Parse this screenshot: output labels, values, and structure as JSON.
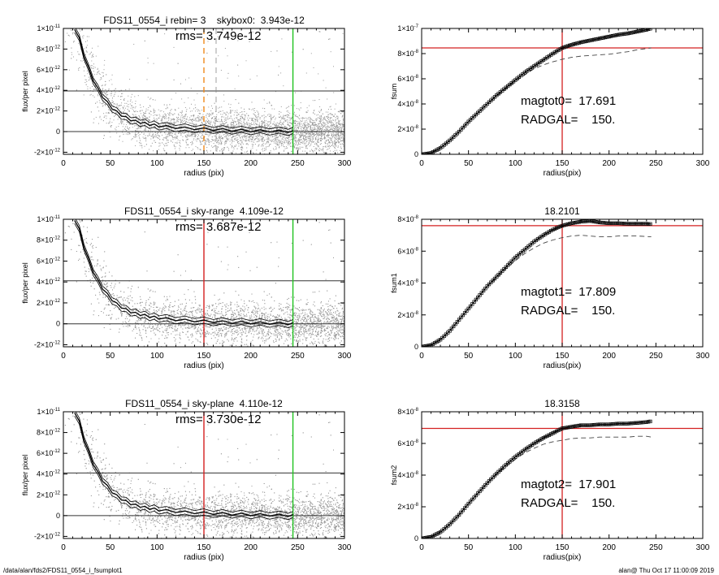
{
  "footer": {
    "path": "/data/alan/fds2/FDS11_0554_i_fsumplot1",
    "stamp": "alan@  Thu Oct 17 11:00:09 2019"
  },
  "colors": {
    "scatter": "#9a9a9a",
    "profile": "#000000",
    "red_marker": "#d42020",
    "green_marker": "#1fc21f",
    "orange_marker": "#f08a1c",
    "dashed_curve": "#444444"
  },
  "chart_data": [
    {
      "type": "scatter",
      "panel": "left-row1",
      "title": "FDS11_0554_i rebin= 3    skybox0:  3.943e-12",
      "annotation": "rms= 3.749e-12",
      "xlabel": "radius (pix)",
      "ylabel": "flux/per pixel",
      "xlim": [
        0,
        300
      ],
      "ylim": [
        -2.2e-12,
        1e-11
      ],
      "xticks": [
        "0",
        "50",
        "100",
        "150",
        "200",
        "250",
        "300"
      ],
      "yticks": [
        {
          "value": 1e-11,
          "base": "1×10",
          "exp": "-11"
        },
        {
          "value": 8e-12,
          "base": "8×10",
          "exp": "-12"
        },
        {
          "value": 6e-12,
          "base": "6×10",
          "exp": "-12"
        },
        {
          "value": 4e-12,
          "base": "4×10",
          "exp": "-12"
        },
        {
          "value": 2e-12,
          "base": "2×10",
          "exp": "-12"
        },
        {
          "value": 0,
          "base": "0",
          "exp": ""
        },
        {
          "value": -2e-12,
          "base": "-2×10",
          "exp": "-12"
        }
      ],
      "hlines": [
        3.94e-12,
        0
      ],
      "vlines": [
        {
          "x": 150,
          "color": "orange",
          "style": "dashed"
        },
        {
          "x": 163,
          "color": "grey",
          "style": "dashed"
        },
        {
          "x": 245,
          "color": "green",
          "style": "solid"
        }
      ],
      "profile": {
        "x": [
          12,
          17,
          22,
          27,
          32,
          37,
          42,
          47,
          52,
          57,
          62,
          67,
          72,
          77,
          82,
          87,
          92,
          97,
          102,
          110,
          120,
          130,
          140,
          150,
          160,
          170,
          180,
          190,
          200,
          210,
          220,
          230,
          240,
          245
        ],
        "y": [
          1e-11,
          9e-12,
          7.4e-12,
          6.1e-12,
          5e-12,
          4.1e-12,
          3.4e-12,
          2.8e-12,
          2.3e-12,
          1.9e-12,
          1.6e-12,
          1.35e-12,
          1.15e-12,
          1e-12,
          9e-13,
          8e-13,
          7e-13,
          6.3e-13,
          5.6e-13,
          4.8e-13,
          4e-13,
          3.4e-13,
          2.9e-13,
          2.5e-13,
          2.1e-13,
          1.8e-13,
          1.5e-13,
          1.2e-13,
          1e-13,
          8e-14,
          6e-14,
          4e-14,
          2e-14,
          0
        ],
        "band": 3e-13
      }
    },
    {
      "type": "line",
      "panel": "right-row1",
      "title": "",
      "annotations": [
        "magtot0=  17.691",
        "RADGAL=    150."
      ],
      "xlabel": "radius(pix)",
      "ylabel": "fsum",
      "xlim": [
        0,
        300
      ],
      "ylim": [
        0,
        1e-07
      ],
      "xticks": [
        "0",
        "50",
        "100",
        "150",
        "200",
        "250",
        "300"
      ],
      "yticks": [
        {
          "value": 0,
          "base": "0",
          "exp": ""
        },
        {
          "value": 2e-08,
          "base": "2×10",
          "exp": "-8"
        },
        {
          "value": 4e-08,
          "base": "4×10",
          "exp": "-8"
        },
        {
          "value": 6e-08,
          "base": "6×10",
          "exp": "-8"
        },
        {
          "value": 8e-08,
          "base": "8×10",
          "exp": "-8"
        },
        {
          "value": 1e-07,
          "base": "1×10",
          "exp": "-7"
        }
      ],
      "hline": 8.45e-08,
      "vline": 150,
      "solid": {
        "x": [
          0,
          10,
          20,
          30,
          40,
          50,
          60,
          70,
          80,
          90,
          100,
          110,
          120,
          130,
          140,
          150,
          160,
          170,
          180,
          190,
          200,
          210,
          220,
          230,
          240,
          245
        ],
        "y": [
          0,
          1e-09,
          5e-09,
          1.1e-08,
          1.8e-08,
          2.6e-08,
          3.3e-08,
          4e-08,
          4.7e-08,
          5.3e-08,
          5.9e-08,
          6.5e-08,
          7e-08,
          7.5e-08,
          8e-08,
          8.45e-08,
          8.7e-08,
          8.9e-08,
          9.05e-08,
          9.2e-08,
          9.35e-08,
          9.5e-08,
          9.6e-08,
          9.75e-08,
          9.9e-08,
          1e-07
        ]
      },
      "dashed": {
        "x": [
          0,
          10,
          20,
          30,
          40,
          50,
          60,
          70,
          80,
          90,
          100,
          110,
          120,
          130,
          140,
          150,
          160,
          170,
          180,
          190,
          200,
          210,
          220,
          230,
          240,
          245
        ],
        "y": [
          0,
          1e-09,
          5e-09,
          1.1e-08,
          1.8e-08,
          2.6e-08,
          3.3e-08,
          4e-08,
          4.6e-08,
          5.2e-08,
          5.8e-08,
          6.3e-08,
          6.8e-08,
          7.1e-08,
          7.35e-08,
          7.55e-08,
          7.7e-08,
          7.8e-08,
          7.85e-08,
          7.9e-08,
          7.95e-08,
          8.05e-08,
          8.15e-08,
          8.3e-08,
          8.4e-08,
          8.45e-08
        ]
      }
    },
    {
      "type": "scatter",
      "panel": "left-row2",
      "title": "FDS11_0554_i sky-range  4.109e-12",
      "annotation": "rms= 3.687e-12",
      "xlabel": "radius (pix)",
      "ylabel": "flux/per pixel",
      "xlim": [
        0,
        300
      ],
      "ylim": [
        -2.2e-12,
        1e-11
      ],
      "xticks": [
        "0",
        "50",
        "100",
        "150",
        "200",
        "250",
        "300"
      ],
      "yticks": [
        {
          "value": 1e-11,
          "base": "1×10",
          "exp": "-11"
        },
        {
          "value": 8e-12,
          "base": "8×10",
          "exp": "-12"
        },
        {
          "value": 6e-12,
          "base": "6×10",
          "exp": "-12"
        },
        {
          "value": 4e-12,
          "base": "4×10",
          "exp": "-12"
        },
        {
          "value": 2e-12,
          "base": "2×10",
          "exp": "-12"
        },
        {
          "value": 0,
          "base": "0",
          "exp": ""
        },
        {
          "value": -2e-12,
          "base": "-2×10",
          "exp": "-12"
        }
      ],
      "hlines": [
        4.11e-12,
        0
      ],
      "vlines": [
        {
          "x": 150,
          "color": "red",
          "style": "solid"
        },
        {
          "x": 245,
          "color": "green",
          "style": "solid"
        }
      ],
      "profile": {
        "x": [
          12,
          17,
          22,
          27,
          32,
          37,
          42,
          47,
          52,
          57,
          62,
          67,
          72,
          77,
          82,
          87,
          92,
          97,
          102,
          110,
          120,
          130,
          140,
          150,
          160,
          170,
          180,
          190,
          200,
          210,
          220,
          230,
          240,
          245
        ],
        "y": [
          1e-11,
          9e-12,
          7.4e-12,
          6.1e-12,
          5e-12,
          4.1e-12,
          3.4e-12,
          2.8e-12,
          2.3e-12,
          1.9e-12,
          1.6e-12,
          1.35e-12,
          1.15e-12,
          1e-12,
          9e-13,
          8e-13,
          7e-13,
          6.3e-13,
          5.6e-13,
          4.8e-13,
          4e-13,
          3.4e-13,
          2.9e-13,
          2.5e-13,
          2.1e-13,
          1.8e-13,
          1.5e-13,
          1.2e-13,
          1e-13,
          8e-14,
          6e-14,
          4e-14,
          2e-14,
          0
        ],
        "band": 3e-13
      }
    },
    {
      "type": "line",
      "panel": "right-row2",
      "title": "18.2101",
      "annotations": [
        "magtot1=  17.809",
        "RADGAL=    150."
      ],
      "xlabel": "radius(pix)",
      "ylabel": "fsum1",
      "xlim": [
        0,
        300
      ],
      "ylim": [
        0,
        8e-08
      ],
      "xticks": [
        "0",
        "50",
        "100",
        "150",
        "200",
        "250",
        "300"
      ],
      "yticks": [
        {
          "value": 0,
          "base": "0",
          "exp": ""
        },
        {
          "value": 2e-08,
          "base": "2×10",
          "exp": "-8"
        },
        {
          "value": 4e-08,
          "base": "4×10",
          "exp": "-8"
        },
        {
          "value": 6e-08,
          "base": "6×10",
          "exp": "-8"
        },
        {
          "value": 8e-08,
          "base": "8×10",
          "exp": "-8"
        }
      ],
      "hline": 7.6e-08,
      "vline": 150,
      "solid": {
        "x": [
          0,
          10,
          20,
          30,
          40,
          50,
          60,
          70,
          80,
          90,
          100,
          110,
          120,
          130,
          140,
          150,
          160,
          170,
          180,
          190,
          200,
          210,
          220,
          230,
          240,
          245
        ],
        "y": [
          0,
          1e-09,
          4.5e-09,
          1e-08,
          1.7e-08,
          2.4e-08,
          3.1e-08,
          3.8e-08,
          4.4e-08,
          5e-08,
          5.6e-08,
          6.1e-08,
          6.6e-08,
          7e-08,
          7.35e-08,
          7.6e-08,
          7.75e-08,
          7.85e-08,
          7.9e-08,
          7.8e-08,
          7.75e-08,
          7.75e-08,
          7.72e-08,
          7.72e-08,
          7.72e-08,
          7.7e-08
        ]
      },
      "dashed": {
        "x": [
          0,
          10,
          20,
          30,
          40,
          50,
          60,
          70,
          80,
          90,
          100,
          110,
          120,
          130,
          140,
          150,
          160,
          170,
          180,
          190,
          200,
          210,
          220,
          230,
          240,
          245
        ],
        "y": [
          0,
          1e-09,
          4.5e-09,
          1e-08,
          1.7e-08,
          2.4e-08,
          3.1e-08,
          3.8e-08,
          4.3e-08,
          4.9e-08,
          5.4e-08,
          5.85e-08,
          6.2e-08,
          6.5e-08,
          6.7e-08,
          6.85e-08,
          6.95e-08,
          7e-08,
          6.95e-08,
          6.9e-08,
          6.9e-08,
          6.95e-08,
          6.95e-08,
          6.95e-08,
          6.92e-08,
          6.9e-08
        ]
      }
    },
    {
      "type": "scatter",
      "panel": "left-row3",
      "title": "FDS11_0554_i sky-plane  4.110e-12",
      "annotation": "rms= 3.730e-12",
      "xlabel": "radius (pix)",
      "ylabel": "flux/per pixel",
      "xlim": [
        0,
        300
      ],
      "ylim": [
        -2.2e-12,
        1e-11
      ],
      "xticks": [
        "0",
        "50",
        "100",
        "150",
        "200",
        "250",
        "300"
      ],
      "yticks": [
        {
          "value": 1e-11,
          "base": "1×10",
          "exp": "-11"
        },
        {
          "value": 8e-12,
          "base": "8×10",
          "exp": "-12"
        },
        {
          "value": 6e-12,
          "base": "6×10",
          "exp": "-12"
        },
        {
          "value": 4e-12,
          "base": "4×10",
          "exp": "-12"
        },
        {
          "value": 2e-12,
          "base": "2×10",
          "exp": "-12"
        },
        {
          "value": 0,
          "base": "0",
          "exp": ""
        },
        {
          "value": -2e-12,
          "base": "-2×10",
          "exp": "-12"
        }
      ],
      "hlines": [
        4.11e-12,
        0
      ],
      "vlines": [
        {
          "x": 150,
          "color": "red",
          "style": "solid"
        },
        {
          "x": 245,
          "color": "green",
          "style": "solid"
        }
      ],
      "profile": {
        "x": [
          12,
          17,
          22,
          27,
          32,
          37,
          42,
          47,
          52,
          57,
          62,
          67,
          72,
          77,
          82,
          87,
          92,
          97,
          102,
          110,
          120,
          130,
          140,
          150,
          160,
          170,
          180,
          190,
          200,
          210,
          220,
          230,
          240,
          245
        ],
        "y": [
          1e-11,
          9e-12,
          7.4e-12,
          6.1e-12,
          5e-12,
          4.1e-12,
          3.4e-12,
          2.8e-12,
          2.3e-12,
          1.9e-12,
          1.6e-12,
          1.35e-12,
          1.15e-12,
          1e-12,
          9e-13,
          8e-13,
          7e-13,
          6.3e-13,
          5.6e-13,
          4.8e-13,
          4e-13,
          3.4e-13,
          2.9e-13,
          2.5e-13,
          2.1e-13,
          1.8e-13,
          1.5e-13,
          1.2e-13,
          1e-13,
          8e-14,
          6e-14,
          4e-14,
          2e-14,
          0
        ],
        "band": 3e-13
      }
    },
    {
      "type": "line",
      "panel": "right-row3",
      "title": "18.3158",
      "annotations": [
        "magtot2=  17.901",
        "RADGAL=    150."
      ],
      "xlabel": "radius(pix)",
      "ylabel": "fsum2",
      "xlim": [
        0,
        300
      ],
      "ylim": [
        0,
        8e-08
      ],
      "xticks": [
        "0",
        "50",
        "100",
        "150",
        "200",
        "250",
        "300"
      ],
      "yticks": [
        {
          "value": 0,
          "base": "0",
          "exp": ""
        },
        {
          "value": 2e-08,
          "base": "2×10",
          "exp": "-8"
        },
        {
          "value": 4e-08,
          "base": "4×10",
          "exp": "-8"
        },
        {
          "value": 6e-08,
          "base": "6×10",
          "exp": "-8"
        },
        {
          "value": 8e-08,
          "base": "8×10",
          "exp": "-8"
        }
      ],
      "hline": 6.95e-08,
      "vline": 150,
      "solid": {
        "x": [
          0,
          10,
          20,
          30,
          40,
          50,
          60,
          70,
          80,
          90,
          100,
          110,
          120,
          130,
          140,
          150,
          160,
          170,
          180,
          190,
          200,
          210,
          220,
          230,
          240,
          245
        ],
        "y": [
          0,
          1e-09,
          4e-09,
          9e-09,
          1.5e-08,
          2.2e-08,
          2.85e-08,
          3.5e-08,
          4.1e-08,
          4.65e-08,
          5.15e-08,
          5.6e-08,
          6e-08,
          6.35e-08,
          6.65e-08,
          6.95e-08,
          7.05e-08,
          7.15e-08,
          7.15e-08,
          7.2e-08,
          7.2e-08,
          7.25e-08,
          7.25e-08,
          7.3e-08,
          7.35e-08,
          7.4e-08
        ]
      },
      "dashed": {
        "x": [
          0,
          10,
          20,
          30,
          40,
          50,
          60,
          70,
          80,
          90,
          100,
          110,
          120,
          130,
          140,
          150,
          160,
          170,
          180,
          190,
          200,
          210,
          220,
          230,
          240,
          245
        ],
        "y": [
          0,
          1e-09,
          4e-09,
          9e-09,
          1.5e-08,
          2.2e-08,
          2.85e-08,
          3.5e-08,
          4.05e-08,
          4.55e-08,
          5e-08,
          5.4e-08,
          5.7e-08,
          5.95e-08,
          6.1e-08,
          6.2e-08,
          6.3e-08,
          6.35e-08,
          6.35e-08,
          6.4e-08,
          6.4e-08,
          6.4e-08,
          6.4e-08,
          6.45e-08,
          6.45e-08,
          6.4e-08
        ]
      }
    }
  ]
}
